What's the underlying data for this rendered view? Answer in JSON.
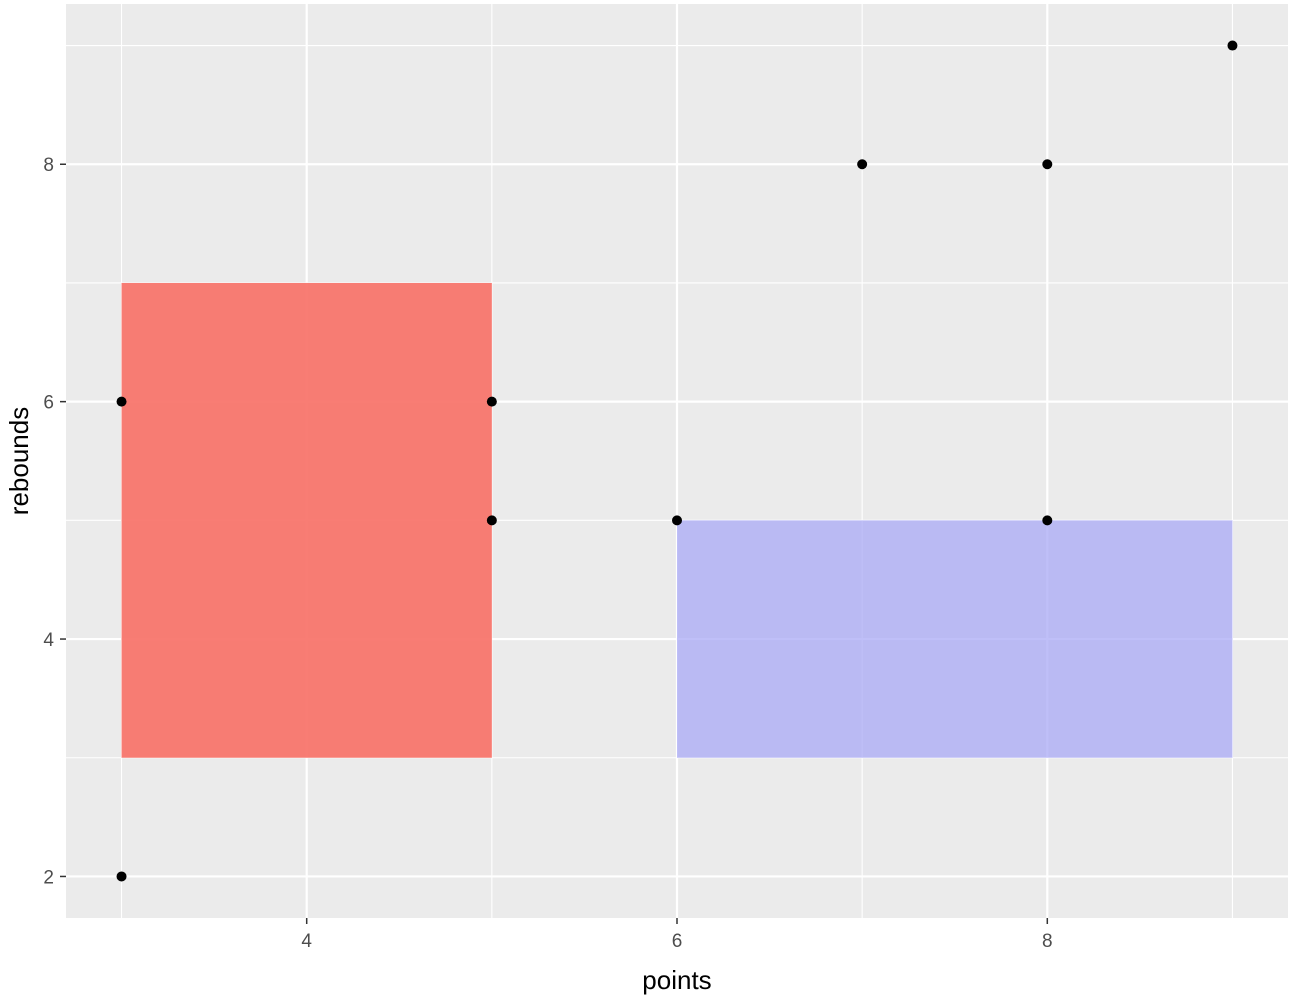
{
  "chart_data": {
    "type": "scatter",
    "title": "",
    "xlabel": "points",
    "ylabel": "rebounds",
    "xlim": [
      2.7,
      9.3
    ],
    "ylim": [
      1.65,
      9.35
    ],
    "x_ticks": [
      4,
      6,
      8
    ],
    "y_ticks": [
      2,
      4,
      6,
      8
    ],
    "x_tick_labels": [
      "4",
      "6",
      "8"
    ],
    "y_tick_labels": [
      "2",
      "4",
      "6",
      "8"
    ],
    "x_minor": [
      3,
      5,
      7,
      9
    ],
    "y_minor": [
      3,
      5,
      7,
      9
    ],
    "grid": true,
    "points": [
      {
        "x": 3,
        "y": 6
      },
      {
        "x": 3,
        "y": 2
      },
      {
        "x": 5,
        "y": 6
      },
      {
        "x": 5,
        "y": 5
      },
      {
        "x": 6,
        "y": 5
      },
      {
        "x": 7,
        "y": 8
      },
      {
        "x": 8,
        "y": 8
      },
      {
        "x": 8,
        "y": 5
      },
      {
        "x": 9,
        "y": 9
      }
    ],
    "rects": [
      {
        "xmin": 3,
        "xmax": 5,
        "ymin": 3,
        "ymax": 7,
        "color": "#f8766d",
        "opacity": 0.95
      },
      {
        "xmin": 6,
        "xmax": 9,
        "ymin": 3,
        "ymax": 5,
        "color": "#aaaaf5",
        "opacity": 0.75
      }
    ],
    "colors": {
      "panel": "#ebebeb",
      "grid": "#ffffff",
      "point": "#000000"
    }
  }
}
